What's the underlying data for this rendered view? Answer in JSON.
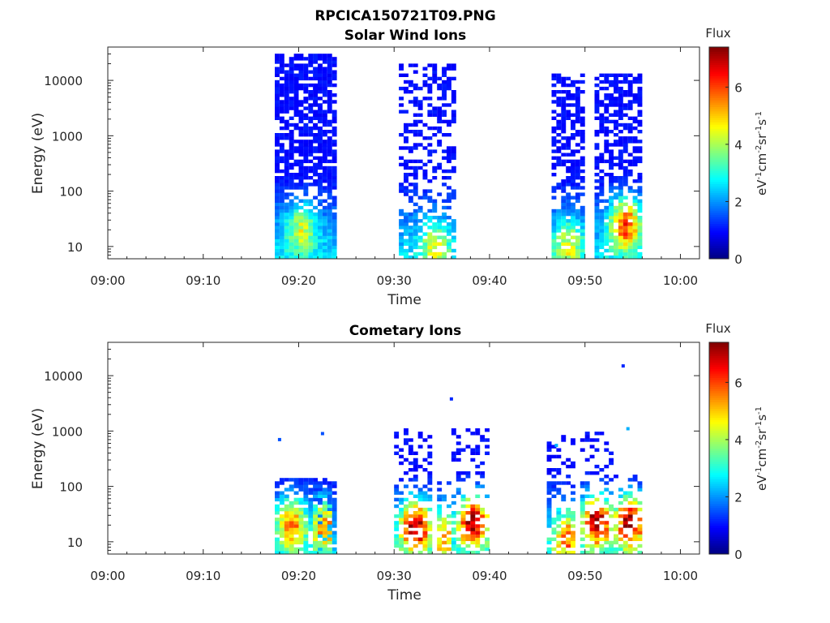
{
  "figure_title": "RPCICA150721T09.PNG",
  "chart_data": [
    {
      "type": "heatmap",
      "title": "Solar Wind Ions",
      "xlabel": "Time",
      "ylabel": "Energy (eV)",
      "x_ticks": [
        "09:00",
        "09:10",
        "09:20",
        "09:30",
        "09:40",
        "09:50",
        "10:00"
      ],
      "x_range_minutes": [
        0,
        62
      ],
      "y_scale": "log",
      "y_ticks": [
        "10",
        "100",
        "1000",
        "10000"
      ],
      "y_range": [
        6,
        40000
      ],
      "colorbar": {
        "title": "Flux",
        "label": "eV-1cm-2sr-1s-1",
        "range": [
          0,
          7.4
        ],
        "ticks": [
          "0",
          "2",
          "4",
          "6"
        ],
        "colormap": "jet"
      },
      "bursts": [
        {
          "t_start": "09:17.5",
          "t_end": "09:24",
          "e_max": 30000,
          "density": 0.75,
          "flux_peak": 3.8,
          "peak_energy": 20,
          "peak_time": "09:20"
        },
        {
          "t_start": "09:30.5",
          "t_end": "09:36.5",
          "e_max": 20000,
          "density": 0.4,
          "flux_peak": 3.5,
          "peak_energy": 10,
          "peak_time": "09:34"
        },
        {
          "t_start": "09:46.5",
          "t_end": "09:50",
          "e_max": 12000,
          "density": 0.6,
          "flux_peak": 3.6,
          "peak_energy": 10,
          "peak_time": "09:48"
        },
        {
          "t_start": "09:51",
          "t_end": "09:56",
          "e_max": 13000,
          "density": 0.6,
          "flux_peak": 5.8,
          "peak_energy": 25,
          "peak_time": "09:54"
        }
      ]
    },
    {
      "type": "heatmap",
      "title": "Cometary Ions",
      "xlabel": "Time",
      "ylabel": "Energy (eV)",
      "x_ticks": [
        "09:00",
        "09:10",
        "09:20",
        "09:30",
        "09:40",
        "09:50",
        "10:00"
      ],
      "x_range_minutes": [
        0,
        62
      ],
      "y_scale": "log",
      "y_ticks": [
        "10",
        "100",
        "1000",
        "10000"
      ],
      "y_range": [
        6,
        40000
      ],
      "colorbar": {
        "title": "Flux",
        "label": "eV-1cm-2sr-1s-1",
        "range": [
          0,
          7.4
        ],
        "ticks": [
          "0",
          "2",
          "4",
          "6"
        ],
        "colormap": "jet"
      },
      "bursts": [
        {
          "t_start": "09:17.5",
          "t_end": "09:24",
          "e_max": 130,
          "density": 0.55,
          "flux_peak": 5.2,
          "peak_energy": 20,
          "peak_time": "09:19"
        },
        {
          "t_start": "09:21.5",
          "t_end": "09:23.5",
          "e_max": 100,
          "density": 0.55,
          "flux_peak": 5.0,
          "peak_energy": 18,
          "peak_time": "09:22.5"
        },
        {
          "t_start": "09:30",
          "t_end": "09:34",
          "e_max": 1000,
          "density": 0.35,
          "flux_peak": 6.8,
          "peak_energy": 18,
          "peak_time": "09:32"
        },
        {
          "t_start": "09:34.5",
          "t_end": "09:36",
          "e_max": 120,
          "density": 0.35,
          "flux_peak": 4.6,
          "peak_energy": 12,
          "peak_time": "09:35"
        },
        {
          "t_start": "09:36",
          "t_end": "09:40",
          "e_max": 1000,
          "density": 0.35,
          "flux_peak": 7.0,
          "peak_energy": 22,
          "peak_time": "09:38"
        },
        {
          "t_start": "09:46",
          "t_end": "09:49",
          "e_max": 800,
          "density": 0.35,
          "flux_peak": 5.0,
          "peak_energy": 12,
          "peak_time": "09:48"
        },
        {
          "t_start": "09:49.5",
          "t_end": "09:53",
          "e_max": 1000,
          "density": 0.35,
          "flux_peak": 7.0,
          "peak_energy": 22,
          "peak_time": "09:51"
        },
        {
          "t_start": "09:53",
          "t_end": "09:56",
          "e_max": 150,
          "density": 0.35,
          "flux_peak": 7.0,
          "peak_energy": 22,
          "peak_time": "09:54.5"
        }
      ],
      "isolated_points": [
        {
          "time": "09:18",
          "energy": 700,
          "flux": 1.5
        },
        {
          "time": "09:22.5",
          "energy": 900,
          "flux": 1.5
        },
        {
          "time": "09:36",
          "energy": 3800,
          "flux": 1.2
        },
        {
          "time": "09:54",
          "energy": 15000,
          "flux": 1.2
        },
        {
          "time": "09:47",
          "energy": 550,
          "flux": 2.2
        },
        {
          "time": "09:54.5",
          "energy": 1100,
          "flux": 2.2
        }
      ]
    }
  ]
}
